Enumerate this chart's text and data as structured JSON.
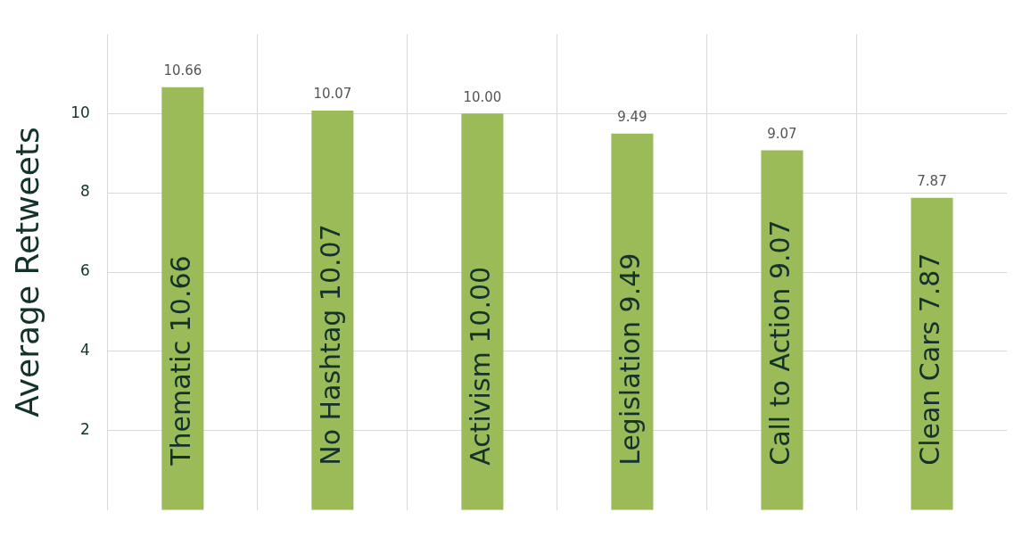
{
  "chart_data": {
    "type": "bar",
    "ylabel": "Average Retweets",
    "categories": [
      "Thematic 10.66",
      "No Hashtag 10.07",
      "Activism 10.00",
      "Legislation 9.49",
      "Call to Action 9.07",
      "Clean Cars 7.87"
    ],
    "values": [
      10.66,
      10.07,
      10.0,
      9.49,
      9.07,
      7.87
    ],
    "color": "#9bbb59",
    "value_labels": [
      "10.66",
      "10.07",
      "10.00",
      "9.49",
      "9.07",
      "7.87"
    ],
    "ylim": [
      0,
      12
    ],
    "yticks": [
      2,
      4,
      6,
      8,
      10
    ],
    "grid": true,
    "legend": false
  }
}
